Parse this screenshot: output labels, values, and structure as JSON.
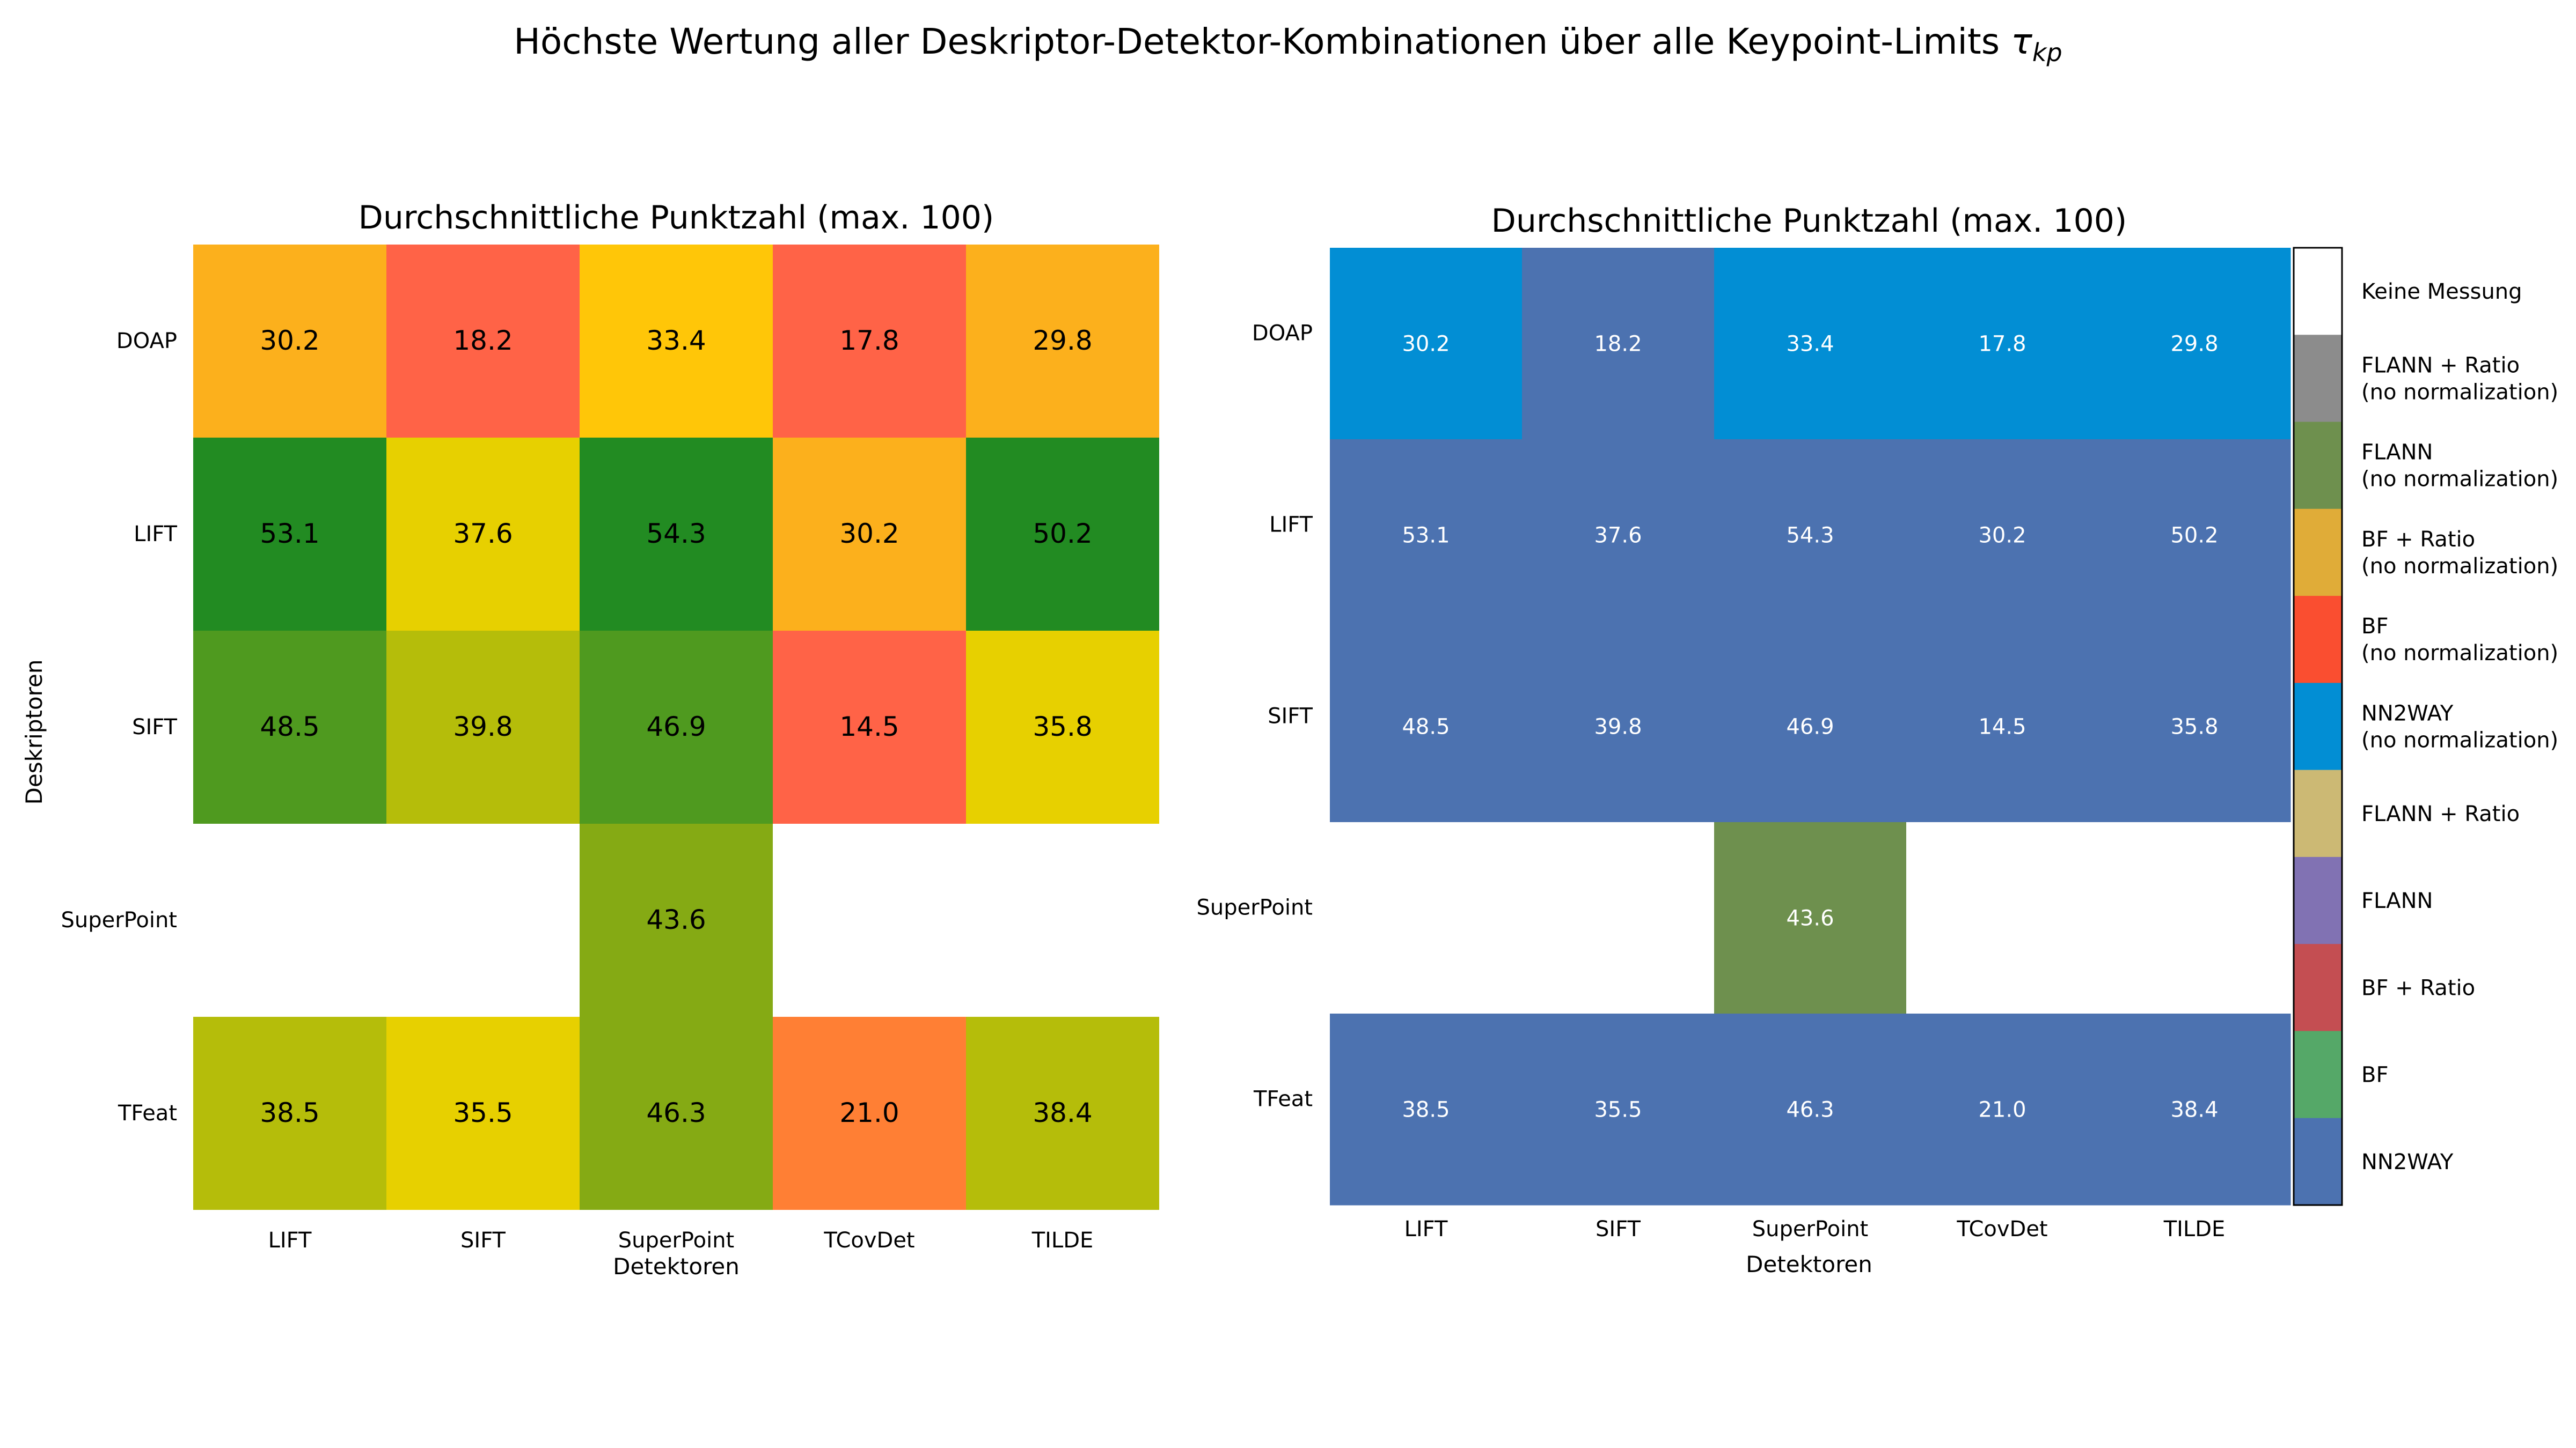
{
  "figure": {
    "title_main": "Höchste Wertung aller Deskriptor-Detektor-Kombinationen über alle Keypoint-Limits ",
    "title_tau": "τ",
    "title_sub": "kp"
  },
  "chart_data": [
    {
      "type": "heatmap",
      "title": "Durchschnittliche Punktzahl (max. 100)",
      "xlabel": "Detektoren",
      "ylabel": "Deskriptoren",
      "x_categories": [
        "LIFT",
        "SIFT",
        "SuperPoint",
        "TCovDet",
        "TILDE"
      ],
      "y_categories": [
        "DOAP",
        "LIFT",
        "SIFT",
        "SuperPoint",
        "TFeat"
      ],
      "values": [
        [
          30.2,
          18.2,
          33.4,
          17.8,
          29.8
        ],
        [
          53.1,
          37.6,
          54.3,
          30.2,
          50.2
        ],
        [
          48.5,
          39.8,
          46.9,
          14.5,
          35.8
        ],
        [
          null,
          null,
          43.6,
          null,
          null
        ],
        [
          38.5,
          35.5,
          46.3,
          21.0,
          38.4
        ]
      ],
      "colormap": "red-yellow-green",
      "colors": {
        "missing": "#ffffff",
        "low": "#ff6347",
        "orange": "#ff7f34",
        "mid": "#fcb01c",
        "yellow": "#ffc608",
        "olive": "#e7d000",
        "green": "#85aa14",
        "high": "#228b22"
      },
      "value_labels": true
    },
    {
      "type": "heatmap",
      "title": "Durchschnittliche Punktzahl (max. 100)",
      "xlabel": "Detektoren",
      "ylabel": "",
      "x_categories": [
        "LIFT",
        "SIFT",
        "SuperPoint",
        "TCovDet",
        "TILDE"
      ],
      "y_categories": [
        "DOAP",
        "LIFT",
        "SIFT",
        "SuperPoint",
        "TFeat"
      ],
      "values": [
        [
          30.2,
          18.2,
          33.4,
          17.8,
          29.8
        ],
        [
          53.1,
          37.6,
          54.3,
          30.2,
          50.2
        ],
        [
          48.5,
          39.8,
          46.9,
          14.5,
          35.8
        ],
        [
          null,
          null,
          43.6,
          null,
          null
        ],
        [
          38.5,
          35.5,
          46.3,
          21.0,
          38.4
        ]
      ],
      "categories_matrix": [
        [
          "NN2WAY\n(no normalization)",
          "NN2WAY",
          "NN2WAY\n(no normalization)",
          "NN2WAY\n(no normalization)",
          "NN2WAY\n(no normalization)"
        ],
        [
          "NN2WAY",
          "NN2WAY",
          "NN2WAY",
          "NN2WAY",
          "NN2WAY"
        ],
        [
          "NN2WAY",
          "NN2WAY",
          "NN2WAY",
          "NN2WAY",
          "NN2WAY"
        ],
        [
          "Keine Messung",
          "Keine Messung",
          "FLANN\n(no normalization)",
          "Keine Messung",
          "Keine Messung"
        ],
        [
          "NN2WAY",
          "NN2WAY",
          "NN2WAY",
          "NN2WAY",
          "NN2WAY"
        ]
      ],
      "legend": [
        {
          "label": "Keine Messung",
          "color": "#ffffff"
        },
        {
          "label": "FLANN + Ratio\n(no normalization)",
          "color": "#8c8c8c"
        },
        {
          "label": "FLANN\n(no normalization)",
          "color": "#6e904e"
        },
        {
          "label": "BF + Ratio\n(no normalization)",
          "color": "#e0ac38"
        },
        {
          "label": "BF\n(no normalization)",
          "color": "#fa4e30"
        },
        {
          "label": "NN2WAY\n(no normalization)",
          "color": "#028ed4"
        },
        {
          "label": "FLANN + Ratio",
          "color": "#ccb974"
        },
        {
          "label": "FLANN",
          "color": "#8172b3"
        },
        {
          "label": "BF + Ratio",
          "color": "#c44e52"
        },
        {
          "label": "BF",
          "color": "#55a868"
        },
        {
          "label": "NN2WAY",
          "color": "#4c72b0"
        }
      ],
      "legend_placement": "right",
      "value_labels": true
    }
  ]
}
